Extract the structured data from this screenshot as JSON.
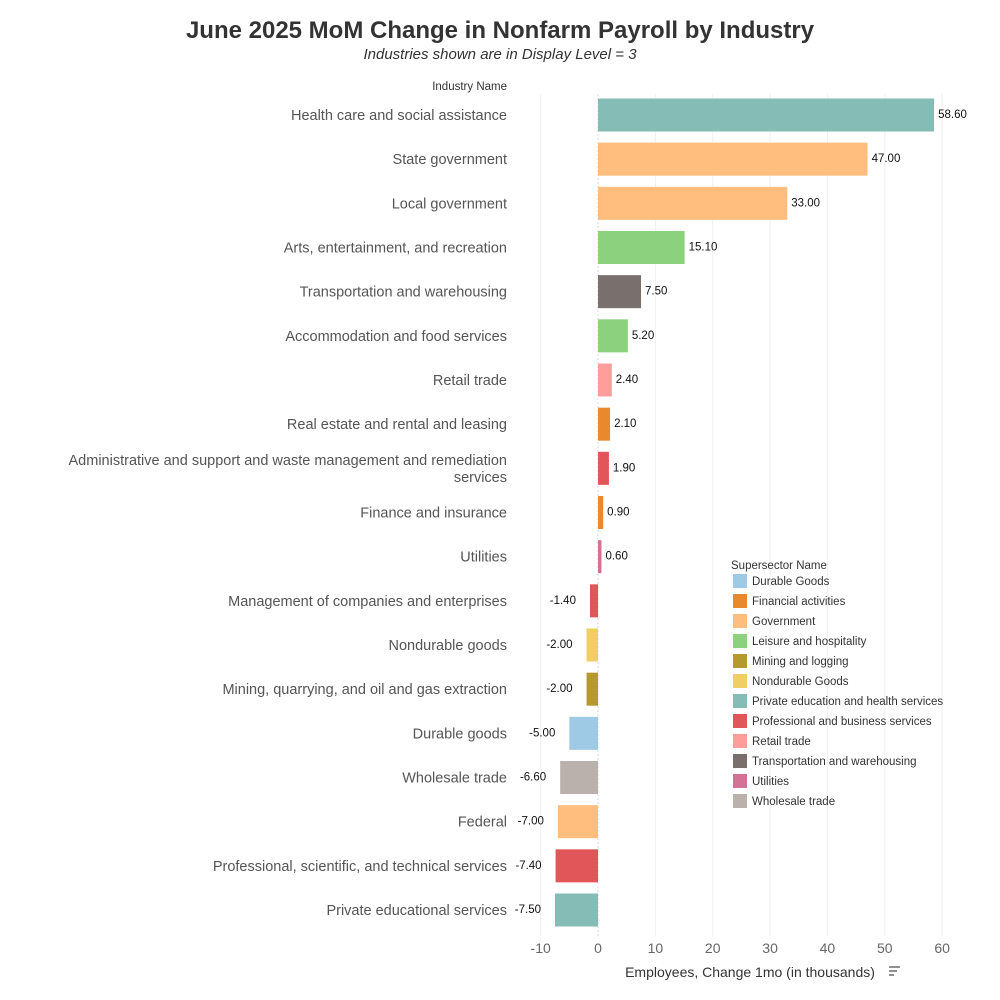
{
  "chart_data": {
    "type": "bar",
    "orientation": "horizontal",
    "title": "June 2025 MoM Change in Nonfarm Payroll by Industry",
    "subtitle": "Industries shown are in Display Level = 3",
    "row_header": "Industry Name",
    "xlabel": "Employees, Change 1mo (in thousands)",
    "xlim": [
      -15,
      68
    ],
    "xticks": [
      -10,
      0,
      10,
      20,
      30,
      40,
      50,
      60
    ],
    "grid": true,
    "legend_title": "Supersector Name",
    "legend_position": "right",
    "legend": [
      {
        "name": "Durable Goods",
        "color": "#9fcae6"
      },
      {
        "name": "Financial activities",
        "color": "#e8892d"
      },
      {
        "name": "Government",
        "color": "#ffbe7d"
      },
      {
        "name": "Leisure and hospitality",
        "color": "#8cd17d"
      },
      {
        "name": "Mining and logging",
        "color": "#b6992d"
      },
      {
        "name": "Nondurable Goods",
        "color": "#f1ce63"
      },
      {
        "name": "Private education and health services",
        "color": "#86bcb6"
      },
      {
        "name": "Professional and business services",
        "color": "#e15759"
      },
      {
        "name": "Retail trade",
        "color": "#ff9d9a"
      },
      {
        "name": "Transportation and warehousing",
        "color": "#79706e"
      },
      {
        "name": "Utilities",
        "color": "#d37295"
      },
      {
        "name": "Wholesale trade",
        "color": "#bab0ac"
      }
    ],
    "bars": [
      {
        "category": [
          "Health care and social assistance"
        ],
        "value": 58.6,
        "label": "58.60",
        "color": "#86bcb6"
      },
      {
        "category": [
          "State government"
        ],
        "value": 47.0,
        "label": "47.00",
        "color": "#ffbe7d"
      },
      {
        "category": [
          "Local government"
        ],
        "value": 33.0,
        "label": "33.00",
        "color": "#ffbe7d"
      },
      {
        "category": [
          "Arts, entertainment, and recreation"
        ],
        "value": 15.1,
        "label": "15.10",
        "color": "#8cd17d"
      },
      {
        "category": [
          "Transportation and warehousing"
        ],
        "value": 7.5,
        "label": "7.50",
        "color": "#79706e"
      },
      {
        "category": [
          "Accommodation and food services"
        ],
        "value": 5.2,
        "label": "5.20",
        "color": "#8cd17d"
      },
      {
        "category": [
          "Retail trade"
        ],
        "value": 2.4,
        "label": "2.40",
        "color": "#ff9d9a"
      },
      {
        "category": [
          "Real estate and rental and leasing"
        ],
        "value": 2.1,
        "label": "2.10",
        "color": "#e8892d"
      },
      {
        "category": [
          "Administrative and support and waste management and remediation",
          "services"
        ],
        "value": 1.9,
        "label": "1.90",
        "color": "#e15759"
      },
      {
        "category": [
          "Finance and insurance"
        ],
        "value": 0.9,
        "label": "0.90",
        "color": "#e8892d"
      },
      {
        "category": [
          "Utilities"
        ],
        "value": 0.6,
        "label": "0.60",
        "color": "#d37295"
      },
      {
        "category": [
          "Management of companies and enterprises"
        ],
        "value": -1.4,
        "label": "-1.40",
        "color": "#e15759"
      },
      {
        "category": [
          "Nondurable goods"
        ],
        "value": -2.0,
        "label": "-2.00",
        "color": "#f1ce63"
      },
      {
        "category": [
          "Mining, quarrying, and oil and gas extraction"
        ],
        "value": -2.0,
        "label": "-2.00",
        "color": "#b6992d"
      },
      {
        "category": [
          "Durable goods"
        ],
        "value": -5.0,
        "label": "-5.00",
        "color": "#9fcae6"
      },
      {
        "category": [
          "Wholesale trade"
        ],
        "value": -6.6,
        "label": "-6.60",
        "color": "#bab0ac"
      },
      {
        "category": [
          "Federal"
        ],
        "value": -7.0,
        "label": "-7.00",
        "color": "#ffbe7d"
      },
      {
        "category": [
          "Professional, scientific, and technical services"
        ],
        "value": -7.4,
        "label": "-7.40",
        "color": "#e15759"
      },
      {
        "category": [
          "Private educational services"
        ],
        "value": -7.5,
        "label": "-7.50",
        "color": "#86bcb6"
      }
    ]
  }
}
